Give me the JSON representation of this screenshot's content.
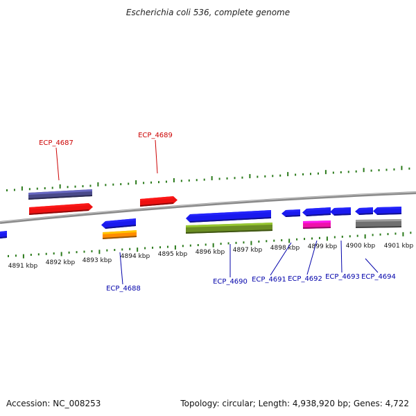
{
  "title": "Escherichia coli 536, complete genome",
  "footer": {
    "accession": "Accession: NC_008253",
    "summary": "Topology: circular; Length: 4,938,920 bp; Genes: 4,722"
  },
  "colors": {
    "tick": "#2a7a1a",
    "backbone": "#888888",
    "label_forward": "#cc0000",
    "label_reverse": "#0000aa",
    "leader_forward": "#cc0000",
    "leader_reverse": "#0000aa"
  },
  "scale": {
    "unit": "kbp",
    "labels": [
      "4891 kbp",
      "4892 kbp",
      "4893 kbp",
      "4894 kbp",
      "4895 kbp",
      "4896 kbp",
      "4897 kbp",
      "4898 kbp",
      "4899 kbp",
      "4900 kbp",
      "4901 kbp"
    ]
  },
  "gene_labels": [
    {
      "text": "ECP_4687",
      "strand": "forward"
    },
    {
      "text": "ECP_4689",
      "strand": "forward"
    },
    {
      "text": "ECP_4688",
      "strand": "reverse"
    },
    {
      "text": "ECP_4690",
      "strand": "reverse"
    },
    {
      "text": "ECP_4691",
      "strand": "reverse"
    },
    {
      "text": "ECP_4692",
      "strand": "reverse"
    },
    {
      "text": "ECP_4693",
      "strand": "reverse"
    },
    {
      "text": "ECP_4694",
      "strand": "reverse"
    }
  ],
  "features": [
    {
      "name": "feature-forward-track-2",
      "color": "#4a4a8a"
    },
    {
      "name": "feature-forward-ecp4687",
      "color": "#ee1111"
    },
    {
      "name": "feature-forward-ecp4689",
      "color": "#ee1111"
    },
    {
      "name": "feature-reverse-partial-left",
      "color": "#1a1aee"
    },
    {
      "name": "feature-reverse-ecp4688",
      "color": "#1a1aee"
    },
    {
      "name": "feature-reverse-track-2-orange",
      "color": "#ff8c00"
    },
    {
      "name": "feature-reverse-ecp4690",
      "color": "#1a1aee"
    },
    {
      "name": "feature-reverse-track-2-olive",
      "color": "#6b8e23"
    },
    {
      "name": "feature-reverse-ecp4691",
      "color": "#1a1aee"
    },
    {
      "name": "feature-reverse-ecp4692",
      "color": "#1a1aee"
    },
    {
      "name": "feature-reverse-track-2-magenta",
      "color": "#ee11aa"
    },
    {
      "name": "feature-reverse-ecp4693",
      "color": "#1a1aee"
    },
    {
      "name": "feature-reverse-ecp4694a",
      "color": "#1a1aee"
    },
    {
      "name": "feature-reverse-ecp4694b",
      "color": "#1a1aee"
    },
    {
      "name": "feature-reverse-track-2-gray",
      "color": "#707070"
    }
  ]
}
